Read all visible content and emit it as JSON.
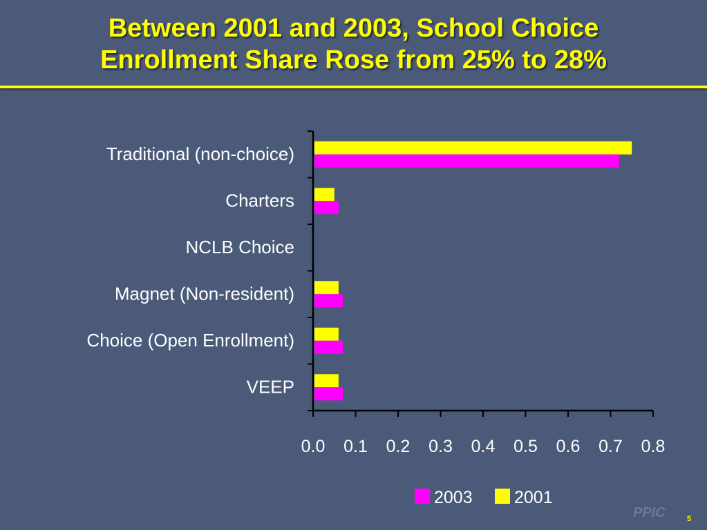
{
  "slide": {
    "title_line1": "Between 2001 and 2003, School Choice",
    "title_line2": "Enrollment Share Rose from 25% to 28%",
    "logo": "PPIC",
    "page_number": "5"
  },
  "chart_data": {
    "type": "bar",
    "orientation": "horizontal",
    "categories": [
      "Traditional (non-choice)",
      "Charters",
      "NCLB Choice",
      "Magnet (Non-resident)",
      "Choice (Open Enrollment)",
      "VEEP"
    ],
    "series": [
      {
        "name": "2001",
        "color": "#ffff00",
        "values": [
          0.75,
          0.05,
          0.0,
          0.06,
          0.06,
          0.06
        ]
      },
      {
        "name": "2003",
        "color": "#ff00ff",
        "values": [
          0.72,
          0.06,
          0.0,
          0.07,
          0.07,
          0.07
        ]
      }
    ],
    "legend_order": [
      "2003",
      "2001"
    ],
    "legend_position": "bottom-right",
    "xlim": [
      0.0,
      0.8
    ],
    "xticks": [
      "0.0",
      "0.1",
      "0.2",
      "0.3",
      "0.4",
      "0.5",
      "0.6",
      "0.7",
      "0.8"
    ],
    "grid": false
  }
}
